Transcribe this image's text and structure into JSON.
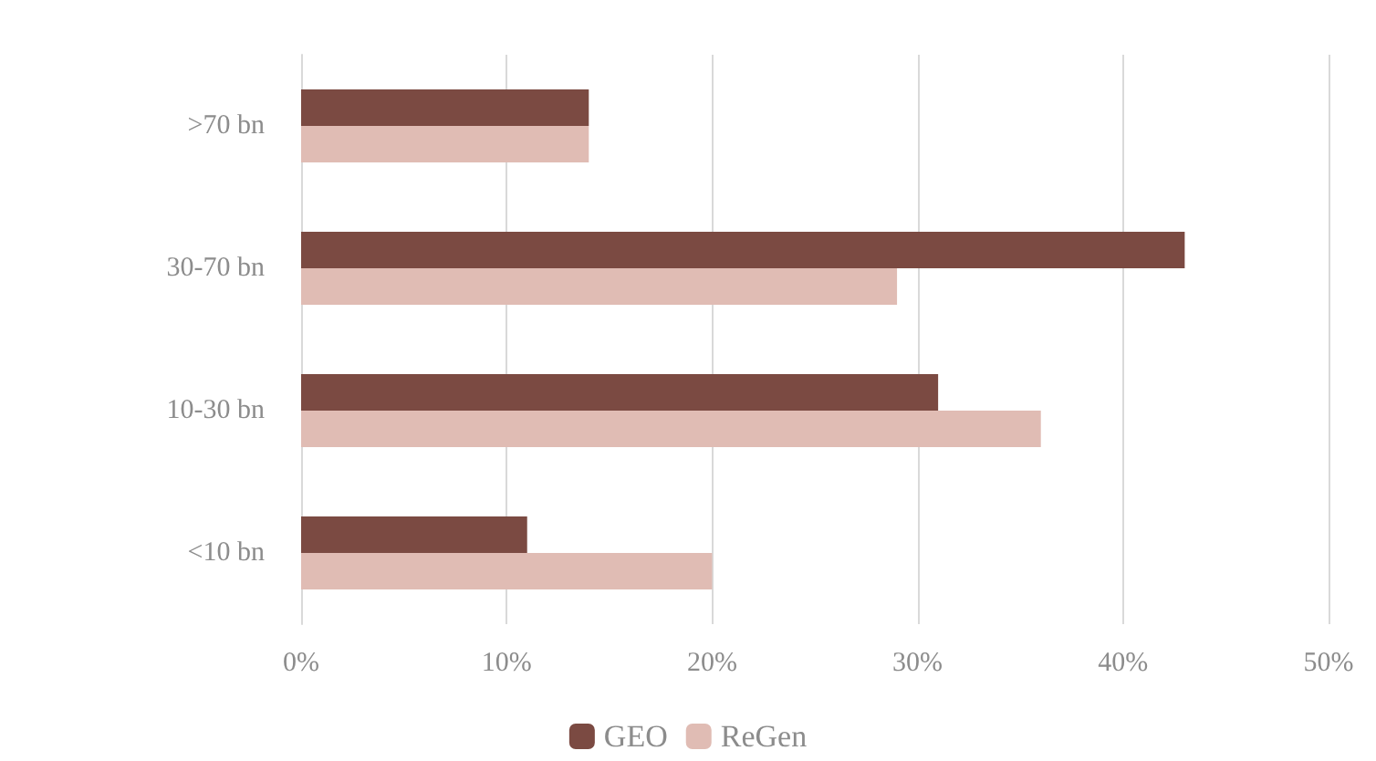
{
  "chart_data": {
    "type": "bar",
    "orientation": "horizontal",
    "categories": [
      ">70 bn",
      "30-70 bn",
      "10-30 bn",
      "<10 bn"
    ],
    "series": [
      {
        "name": "GEO",
        "color": "#7b4a42",
        "values": [
          14,
          43,
          31,
          11
        ]
      },
      {
        "name": "ReGen",
        "color": "#e0bcb4",
        "values": [
          14,
          29,
          36,
          20
        ]
      }
    ],
    "xlim": [
      0,
      50
    ],
    "xticks": [
      {
        "value": 0,
        "label": "0%"
      },
      {
        "value": 10,
        "label": "10%"
      },
      {
        "value": 20,
        "label": "20%"
      },
      {
        "value": 30,
        "label": "30%"
      },
      {
        "value": 40,
        "label": "40%"
      },
      {
        "value": 50,
        "label": "50%"
      }
    ],
    "grid": "x",
    "legend": "bottom"
  }
}
